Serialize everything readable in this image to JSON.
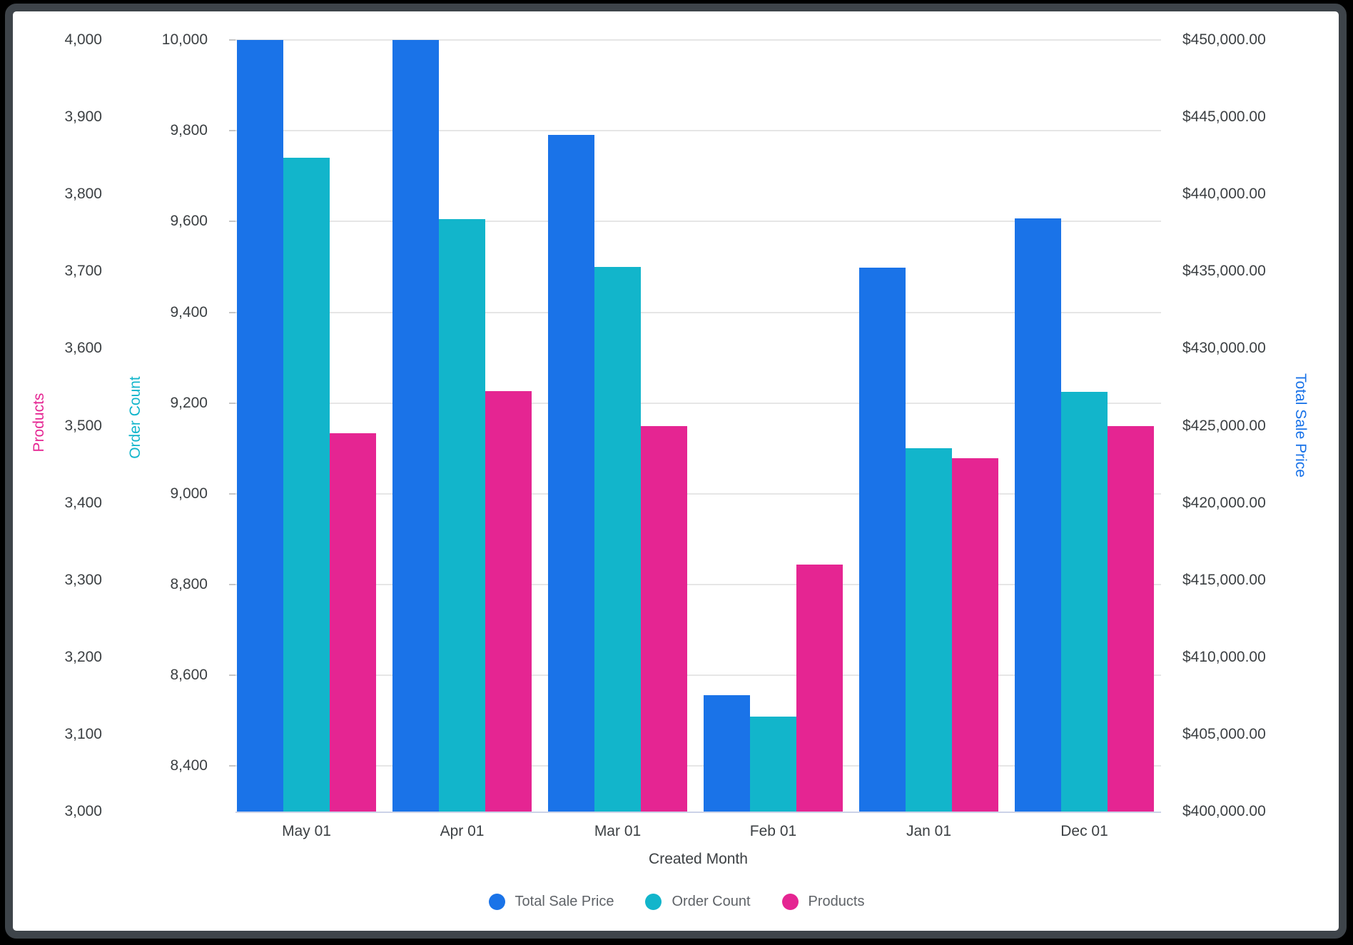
{
  "chart_data": {
    "type": "bar",
    "categories": [
      "May 01",
      "Apr 01",
      "Mar 01",
      "Feb 01",
      "Jan 01",
      "Dec 01"
    ],
    "series": [
      {
        "name": "Total Sale Price",
        "color": "#1A73E8",
        "axis": "right",
        "values": [
          450000,
          450000,
          443850,
          407550,
          435250,
          438450
        ]
      },
      {
        "name": "Order Count",
        "color": "#12B5CB",
        "axis": "order",
        "values": [
          9740,
          9605,
          9500,
          8510,
          9100,
          9225
        ]
      },
      {
        "name": "Products",
        "color": "#E52592",
        "axis": "products",
        "values": [
          3490,
          3545,
          3500,
          3320,
          3458,
          3500
        ]
      }
    ],
    "axes": {
      "products": {
        "title": "Products",
        "color": "#E52592",
        "side": "left-outer",
        "min": 3000,
        "max": 4000,
        "tick_values": [
          4000,
          3900,
          3800,
          3700,
          3600,
          3500,
          3400,
          3300,
          3200,
          3100,
          3000
        ],
        "tick_labels": [
          "4,000",
          "3,900",
          "3,800",
          "3,700",
          "3,600",
          "3,500",
          "3,400",
          "3,300",
          "3,200",
          "3,100",
          "3,000"
        ]
      },
      "order": {
        "title": "Order Count",
        "color": "#12B5CB",
        "side": "left-inner",
        "min": 8300,
        "max": 10000,
        "tick_values": [
          10000,
          9800,
          9600,
          9400,
          9200,
          9000,
          8800,
          8600,
          8400
        ],
        "tick_labels": [
          "10,000",
          "9,800",
          "9,600",
          "9,400",
          "9,200",
          "9,000",
          "8,800",
          "8,600",
          "8,400"
        ]
      },
      "right": {
        "title": "Total Sale Price",
        "color": "#1A73E8",
        "side": "right",
        "min": 400000,
        "max": 450000,
        "tick_values": [
          450000,
          445000,
          440000,
          435000,
          430000,
          425000,
          420000,
          415000,
          410000,
          405000,
          400000
        ],
        "tick_labels": [
          "$450,000.00",
          "$445,000.00",
          "$440,000.00",
          "$435,000.00",
          "$430,000.00",
          "$425,000.00",
          "$420,000.00",
          "$415,000.00",
          "$410,000.00",
          "$405,000.00",
          "$400,000.00"
        ]
      }
    },
    "xlabel": "Created Month",
    "legend_position": "bottom-center",
    "grid": "horizontal gridlines at Order Count ticks"
  },
  "colors": {
    "background": "#000000",
    "frame": "#3E444A",
    "card": "#FFFFFF",
    "gridline": "#E6E6E6",
    "axis_baseline": "#CBD2E8",
    "tick_mark": "#C6C6C6",
    "tick_text": "#3C4043",
    "legend_text": "#5F6368"
  }
}
